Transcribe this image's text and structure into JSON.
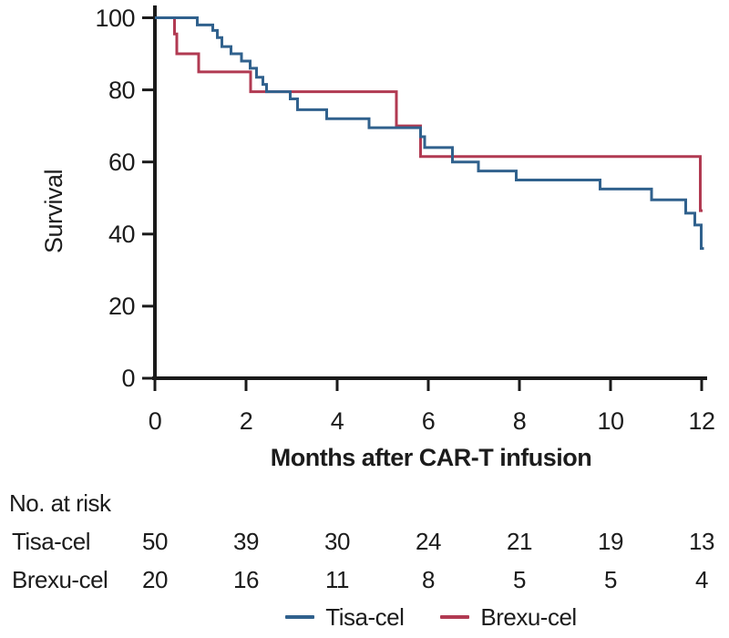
{
  "colors": {
    "tisa_cel": "#30618d",
    "brexu_cel": "#b13a52",
    "axis": "#1a1a1a",
    "text": "#1c1c1c",
    "background": "#ffffff"
  },
  "chart_data": {
    "type": "line",
    "subtype": "kaplan-meier-step",
    "title": "",
    "xlabel": "Months after CAR-T infusion",
    "ylabel": "Survival",
    "xlim": [
      0,
      12
    ],
    "ylim": [
      0,
      100
    ],
    "x_ticks": [
      0,
      2,
      4,
      6,
      8,
      10,
      12
    ],
    "y_ticks": [
      0,
      20,
      40,
      60,
      80,
      100
    ],
    "grid": false,
    "legend_position": "bottom-center",
    "series": [
      {
        "name": "Tisa-cel",
        "color": "#30618d",
        "end_month": 12.05,
        "steps": [
          [
            0,
            100
          ],
          [
            0.93,
            98
          ],
          [
            1.27,
            96.5
          ],
          [
            1.37,
            94.5
          ],
          [
            1.47,
            92
          ],
          [
            1.67,
            90
          ],
          [
            1.9,
            88
          ],
          [
            2.09,
            86
          ],
          [
            2.23,
            83.5
          ],
          [
            2.37,
            81.5
          ],
          [
            2.45,
            79.5
          ],
          [
            2.97,
            77.5
          ],
          [
            3.13,
            74.5
          ],
          [
            3.77,
            72
          ],
          [
            4.7,
            69.5
          ],
          [
            5.83,
            67
          ],
          [
            5.92,
            64
          ],
          [
            6.53,
            60
          ],
          [
            7.1,
            57.5
          ],
          [
            7.93,
            55
          ],
          [
            9.77,
            52.5
          ],
          [
            10.9,
            49.5
          ],
          [
            11.65,
            45.8
          ],
          [
            11.85,
            42.5
          ],
          [
            11.99,
            36
          ]
        ]
      },
      {
        "name": "Brexu-cel",
        "color": "#b13a52",
        "end_month": 12.02,
        "steps": [
          [
            0,
            100
          ],
          [
            0.43,
            95.5
          ],
          [
            0.48,
            90
          ],
          [
            0.96,
            85
          ],
          [
            2.1,
            79.5
          ],
          [
            5.3,
            70
          ],
          [
            5.83,
            61.5
          ],
          [
            11.97,
            46.5
          ]
        ]
      }
    ]
  },
  "risk_table": {
    "header": "No. at risk",
    "time_points": [
      0,
      2,
      4,
      6,
      8,
      10,
      12
    ],
    "rows": [
      {
        "label": "Tisa-cel",
        "counts": [
          50,
          39,
          30,
          24,
          21,
          19,
          13
        ]
      },
      {
        "label": "Brexu-cel",
        "counts": [
          20,
          16,
          11,
          8,
          5,
          5,
          4
        ]
      }
    ]
  },
  "legend": {
    "entries": [
      {
        "label": "Tisa-cel",
        "color": "#30618d"
      },
      {
        "label": "Brexu-cel",
        "color": "#b13a52"
      }
    ]
  }
}
